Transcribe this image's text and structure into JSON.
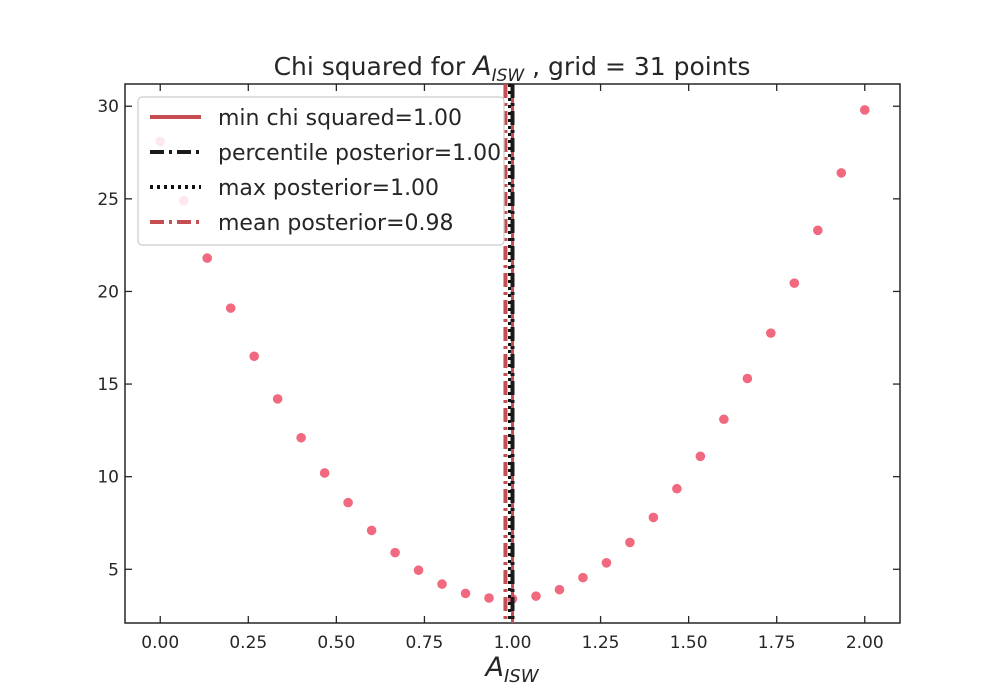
{
  "chart_data": {
    "type": "scatter",
    "title": {
      "prefix": "Chi squared for ",
      "symbol": "A",
      "subscript": "ISW",
      "suffix": " , grid = 31 points"
    },
    "xlabel": {
      "symbol": "A",
      "subscript": "ISW"
    },
    "ylabel": "",
    "xlim": [
      -0.1,
      2.1
    ],
    "ylim": [
      2.1,
      31.2
    ],
    "xticks": [
      0.0,
      0.25,
      0.5,
      0.75,
      1.0,
      1.25,
      1.5,
      1.75,
      2.0
    ],
    "xtick_labels": [
      "0.00",
      "0.25",
      "0.50",
      "0.75",
      "1.00",
      "1.25",
      "1.50",
      "1.75",
      "2.00"
    ],
    "yticks": [
      5,
      10,
      15,
      20,
      25,
      30
    ],
    "ytick_labels": [
      "5",
      "10",
      "15",
      "20",
      "25",
      "30"
    ],
    "grid": false,
    "legend_position": "upper-left",
    "marker_color": "#f0697f",
    "series": [
      {
        "x": [
          0.0,
          0.0667,
          0.1333,
          0.2,
          0.2667,
          0.3333,
          0.4,
          0.4667,
          0.5333,
          0.6,
          0.6667,
          0.7333,
          0.8,
          0.8667,
          0.9333,
          1.0,
          1.0667,
          1.1333,
          1.2,
          1.2667,
          1.3333,
          1.4,
          1.4667,
          1.5333,
          1.6,
          1.6667,
          1.7333,
          1.8,
          1.8667,
          1.9333,
          2.0
        ],
        "y": [
          28.1,
          24.9,
          21.8,
          19.1,
          16.5,
          14.2,
          12.1,
          10.2,
          8.6,
          7.1,
          5.9,
          4.95,
          4.2,
          3.7,
          3.45,
          3.4,
          3.55,
          3.9,
          4.55,
          5.35,
          6.45,
          7.8,
          9.35,
          11.1,
          13.1,
          15.3,
          17.75,
          20.45,
          23.3,
          26.4,
          29.8
        ]
      }
    ],
    "vlines": [
      {
        "label": "min chi squared=1.00",
        "x": 1.0,
        "color": "#c44e52",
        "style": "solid"
      },
      {
        "label": "percentile posterior=1.00",
        "x": 1.0,
        "color": "#1a1a1a",
        "style": "dashdot"
      },
      {
        "label": "max posterior=1.00",
        "x": 1.0,
        "color": "#111111",
        "style": "dotted"
      },
      {
        "label": "mean posterior=0.98",
        "x": 0.98,
        "color": "#c44e52",
        "style": "dashdot"
      }
    ]
  }
}
